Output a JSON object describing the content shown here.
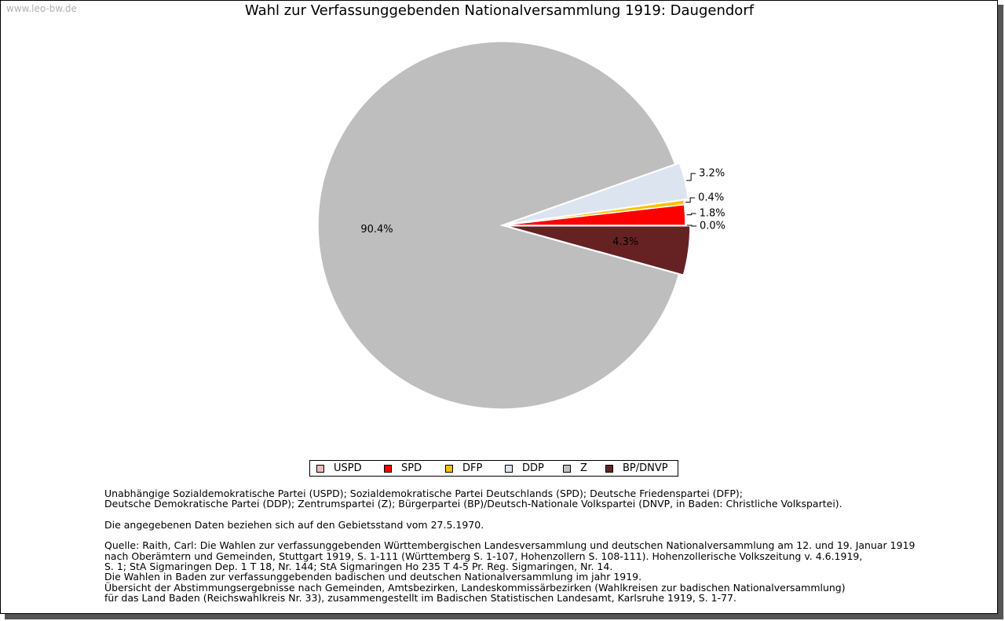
{
  "watermark": "www.leo-bw.de",
  "chart_data": {
    "type": "pie",
    "title": "Wahl zur Verfassunggebenden Nationalversammlung 1919: Daugendorf",
    "categories": [
      "USPD",
      "SPD",
      "DFP",
      "DDP",
      "Z",
      "BP/DNVP"
    ],
    "values": [
      0.0,
      1.8,
      0.4,
      3.2,
      90.4,
      4.3
    ],
    "labels": [
      "0.0%",
      "1.8%",
      "0.4%",
      "3.2%",
      "90.4%",
      "4.3%"
    ],
    "colors": [
      "#f0b8b8",
      "#ff0000",
      "#ffbf00",
      "#dce4f0",
      "#bebebe",
      "#662222"
    ],
    "exploded": [
      "DDP",
      "BP/DNVP"
    ],
    "legend_position": "bottom"
  },
  "notes": {
    "lines1": [
      "Unabhängige Sozialdemokratische Partei (USPD); Sozialdemokratische Partei Deutschlands (SPD); Deutsche Friedenspartei (DFP);",
      "Deutsche Demokratische Partei (DDP); Zentrumspartei (Z); Bürgerpartei (BP)/Deutsch-Nationale Volkspartei (DNVP, in Baden: Christliche Volkspartei)."
    ],
    "gebietsstand": "Die angegebenen Daten beziehen sich auf den Gebietsstand vom 27.5.1970.",
    "quelle": [
      "Quelle: Raith, Carl: Die Wahlen zur verfassunggebenden Württembergischen Landesversammlung und deutschen Nationalversammlung am 12. und 19. Januar 1919",
      "nach Oberämtern und Gemeinden, Stuttgart 1919, S. 1-111 (Württemberg S. 1-107, Hohenzollern S. 108-111). Hohenzollerische Volkszeitung v. 4.6.1919,",
      "S. 1; StA Sigmaringen Dep. 1 T 18, Nr. 144; StA Sigmaringen Ho 235 T 4-5 Pr. Reg. Sigmaringen, Nr. 14.",
      "Die Wahlen in Baden zur verfassunggebenden badischen und deutschen Nationalversammlung im jahr 1919.",
      "Übersicht der Abstimmungsergebnisse nach Gemeinden, Amtsbezirken, Landeskommissärbezirken (Wahlkreisen zur badischen Nationalversammlung)",
      "für das Land Baden (Reichswahlkreis Nr. 33), zusammengestellt im Badischen Statistischen Landesamt, Karlsruhe 1919, S. 1-77."
    ]
  }
}
